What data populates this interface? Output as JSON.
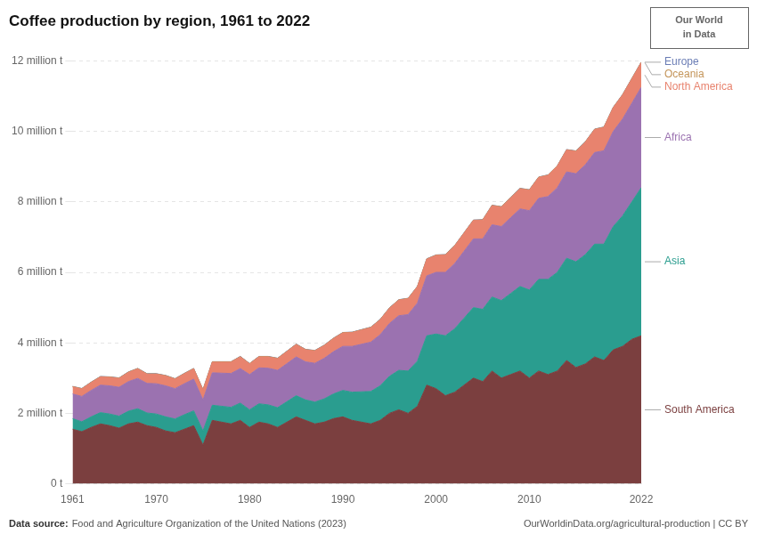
{
  "chart_data": {
    "type": "area",
    "title": "Coffee production by region, 1961 to 2022",
    "stacked": true,
    "x": [
      1961,
      1962,
      1963,
      1964,
      1965,
      1966,
      1967,
      1968,
      1969,
      1970,
      1971,
      1972,
      1973,
      1974,
      1975,
      1976,
      1977,
      1978,
      1979,
      1980,
      1981,
      1982,
      1983,
      1984,
      1985,
      1986,
      1987,
      1988,
      1989,
      1990,
      1991,
      1992,
      1993,
      1994,
      1995,
      1996,
      1997,
      1998,
      1999,
      2000,
      2001,
      2002,
      2003,
      2004,
      2005,
      2006,
      2007,
      2008,
      2009,
      2010,
      2011,
      2012,
      2013,
      2014,
      2015,
      2016,
      2017,
      2018,
      2019,
      2020,
      2021,
      2022
    ],
    "series": [
      {
        "name": "South America",
        "color": "#7B3F3F",
        "values": [
          1550000,
          1480000,
          1600000,
          1700000,
          1650000,
          1580000,
          1700000,
          1750000,
          1650000,
          1600000,
          1500000,
          1450000,
          1550000,
          1650000,
          1100000,
          1800000,
          1750000,
          1700000,
          1800000,
          1600000,
          1750000,
          1700000,
          1600000,
          1750000,
          1900000,
          1800000,
          1700000,
          1750000,
          1850000,
          1900000,
          1800000,
          1750000,
          1700000,
          1800000,
          2000000,
          2100000,
          2000000,
          2200000,
          2800000,
          2700000,
          2500000,
          2600000,
          2800000,
          3000000,
          2900000,
          3200000,
          3000000,
          3100000,
          3200000,
          3000000,
          3200000,
          3100000,
          3200000,
          3500000,
          3300000,
          3400000,
          3600000,
          3500000,
          3800000,
          3900000,
          4100000,
          4200000
        ]
      },
      {
        "name": "Asia",
        "color": "#2A9D8F",
        "values": [
          300000,
          280000,
          300000,
          320000,
          330000,
          340000,
          360000,
          380000,
          360000,
          380000,
          400000,
          390000,
          410000,
          420000,
          400000,
          430000,
          450000,
          470000,
          490000,
          500000,
          520000,
          540000,
          560000,
          580000,
          600000,
          580000,
          620000,
          660000,
          700000,
          750000,
          800000,
          860000,
          920000,
          980000,
          1050000,
          1120000,
          1200000,
          1280000,
          1400000,
          1550000,
          1700000,
          1800000,
          1900000,
          2000000,
          2050000,
          2100000,
          2200000,
          2300000,
          2400000,
          2500000,
          2600000,
          2700000,
          2800000,
          2900000,
          3000000,
          3100000,
          3200000,
          3300000,
          3500000,
          3700000,
          3900000,
          4200000
        ]
      },
      {
        "name": "Africa",
        "color": "#9B72B0",
        "values": [
          700000,
          720000,
          750000,
          780000,
          800000,
          820000,
          840000,
          860000,
          840000,
          860000,
          880000,
          860000,
          880000,
          900000,
          880000,
          920000,
          940000,
          960000,
          980000,
          1000000,
          1020000,
          1040000,
          1060000,
          1080000,
          1100000,
          1080000,
          1100000,
          1150000,
          1200000,
          1250000,
          1300000,
          1350000,
          1400000,
          1450000,
          1500000,
          1550000,
          1600000,
          1650000,
          1700000,
          1750000,
          1800000,
          1850000,
          1900000,
          1950000,
          2000000,
          2050000,
          2100000,
          2150000,
          2200000,
          2250000,
          2300000,
          2350000,
          2400000,
          2450000,
          2500000,
          2550000,
          2600000,
          2650000,
          2700000,
          2750000,
          2800000,
          2850000
        ]
      },
      {
        "name": "North America",
        "color": "#E8836E",
        "values": [
          200000,
          210000,
          220000,
          230000,
          240000,
          250000,
          260000,
          270000,
          260000,
          270000,
          280000,
          270000,
          280000,
          290000,
          280000,
          300000,
          310000,
          320000,
          330000,
          300000,
          310000,
          320000,
          330000,
          340000,
          350000,
          340000,
          350000,
          360000,
          370000,
          380000,
          390000,
          400000,
          410000,
          420000,
          430000,
          440000,
          450000,
          460000,
          470000,
          480000,
          490000,
          500000,
          510000,
          520000,
          530000,
          540000,
          550000,
          560000,
          570000,
          580000,
          590000,
          600000,
          610000,
          620000,
          630000,
          640000,
          650000,
          660000,
          670000,
          680000,
          690000,
          700000
        ]
      },
      {
        "name": "Oceania",
        "color": "#C4955A",
        "values": [
          10000,
          10000,
          10000,
          10000,
          10000,
          10000,
          10000,
          10000,
          10000,
          10000,
          10000,
          10000,
          10000,
          10000,
          10000,
          10000,
          10000,
          10000,
          10000,
          10000,
          10000,
          10000,
          10000,
          10000,
          10000,
          10000,
          10000,
          10000,
          10000,
          10000,
          10000,
          10000,
          10000,
          10000,
          10000,
          10000,
          10000,
          10000,
          10000,
          10000,
          10000,
          10000,
          10000,
          10000,
          10000,
          10000,
          10000,
          10000,
          10000,
          10000,
          10000,
          10000,
          10000,
          10000,
          10000,
          10000,
          10000,
          10000,
          10000,
          10000,
          10000,
          10000
        ]
      },
      {
        "name": "Europe",
        "color": "#6B7DB5",
        "values": [
          5000,
          5000,
          5000,
          5000,
          5000,
          5000,
          5000,
          5000,
          5000,
          5000,
          5000,
          5000,
          5000,
          5000,
          5000,
          5000,
          5000,
          5000,
          5000,
          5000,
          5000,
          5000,
          5000,
          5000,
          5000,
          5000,
          5000,
          5000,
          5000,
          5000,
          5000,
          5000,
          5000,
          5000,
          5000,
          5000,
          5000,
          5000,
          5000,
          5000,
          5000,
          5000,
          5000,
          5000,
          5000,
          5000,
          5000,
          5000,
          5000,
          5000,
          5000,
          5000,
          5000,
          5000,
          5000,
          5000,
          5000,
          5000,
          5000,
          5000,
          5000,
          5000
        ]
      }
    ],
    "xlim": [
      1961,
      2022
    ],
    "xticks": [
      1961,
      1970,
      1980,
      1990,
      2000,
      2010,
      2022
    ],
    "ylim": [
      0,
      12000000
    ],
    "yticks": [
      {
        "value": 0,
        "label": "0 t"
      },
      {
        "value": 2000000,
        "label": "2 million t"
      },
      {
        "value": 4000000,
        "label": "4 million t"
      },
      {
        "value": 6000000,
        "label": "6 million t"
      },
      {
        "value": 8000000,
        "label": "8 million t"
      },
      {
        "value": 10000000,
        "label": "10 million t"
      },
      {
        "value": 12000000,
        "label": "12 million t"
      }
    ],
    "grid": "y",
    "source_label": "Data source:",
    "source": "Food and Agriculture Organization of the United Nations (2023)",
    "credit": "OurWorldinData.org/agricultural-production | CC BY",
    "logo": [
      "Our World",
      "in Data"
    ]
  }
}
